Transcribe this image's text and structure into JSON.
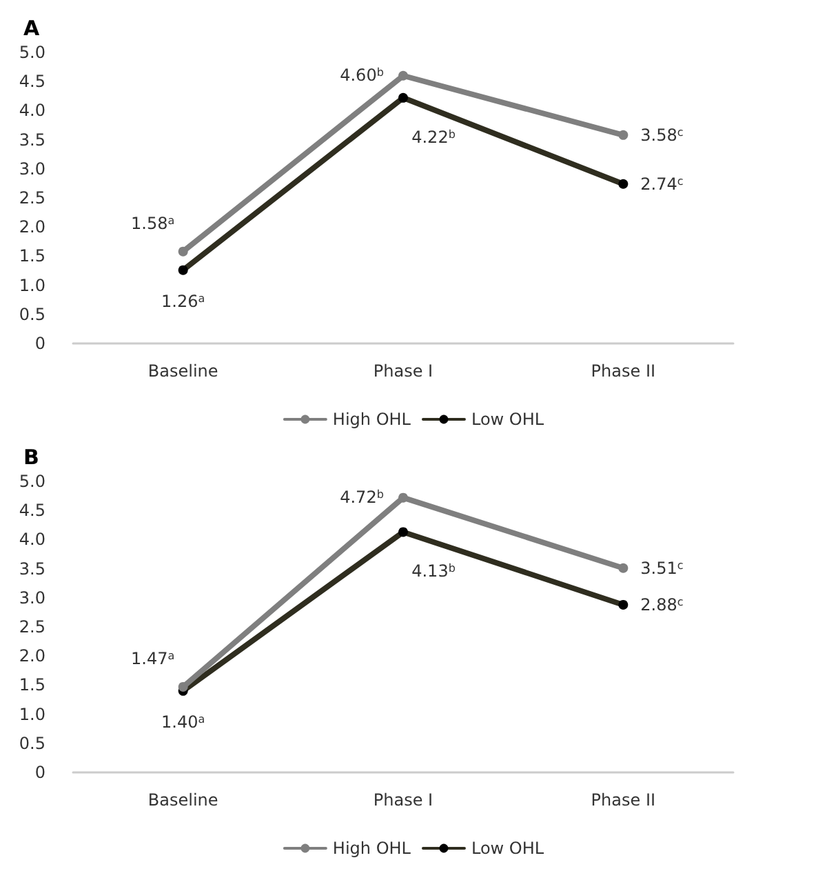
{
  "chart_data": [
    {
      "type": "line",
      "title": "A",
      "categories": [
        "Baseline",
        "Phase I",
        "Phase II"
      ],
      "series": [
        {
          "name": "High OHL",
          "color": "#7f7f7f",
          "values": [
            1.58,
            4.6,
            3.58
          ],
          "value_labels": [
            "1.58$^{a}$",
            "4.60$^{b}$",
            "3.58$^{c}$"
          ]
        },
        {
          "name": "Low OHL",
          "color": "#2f2d1f",
          "values": [
            1.26,
            4.22,
            2.74
          ],
          "value_labels": [
            "1.26$^{a}$",
            "4.22$^{b}$",
            "2.74$^{c}$"
          ]
        }
      ],
      "ylim": [
        0,
        5
      ],
      "yticks": [
        0,
        {
          "value": 0.5,
          "label": "0.5"
        },
        {
          "value": 1,
          "label": "1.0"
        },
        {
          "value": 1.5,
          "label": "1.5"
        },
        {
          "value": 2,
          "label": "2.0"
        },
        {
          "value": 2.5,
          "label": "2.5"
        },
        {
          "value": 3,
          "label": "3.0"
        },
        {
          "value": 3.5,
          "label": "3.5"
        },
        {
          "value": 4,
          "label": "4.0"
        },
        {
          "value": 4.5,
          "label": "4.5"
        },
        {
          "value": 5,
          "label": "5.0"
        }
      ],
      "grid": false,
      "legend": "bottom",
      "marker": "circle",
      "line_style": "solid"
    },
    {
      "type": "line",
      "title": "B",
      "categories": [
        "Baseline",
        "Phase I",
        "Phase II"
      ],
      "series": [
        {
          "name": "High OHL",
          "color": "#7f7f7f",
          "values": [
            1.47,
            4.72,
            3.51
          ],
          "value_labels": [
            "1.47$^{a}$",
            "4.72$^{b}$",
            "3.51$^{c}$"
          ]
        },
        {
          "name": "Low OHL",
          "color": "#2f2d1f",
          "values": [
            1.4,
            4.13,
            2.88
          ],
          "value_labels": [
            "1.40$^{a}$",
            "4.13$^{b}$",
            "2.88$^{c}$"
          ]
        }
      ],
      "ylim": [
        0,
        5
      ],
      "yticks": [
        0,
        {
          "value": 0.5,
          "label": "0.5"
        },
        {
          "value": 1,
          "label": "1.0"
        },
        {
          "value": 1.5,
          "label": "1.5"
        },
        {
          "value": 2,
          "label": "2.0"
        },
        {
          "value": 2.5,
          "label": "2.5"
        },
        {
          "value": 3,
          "label": "3.0"
        },
        {
          "value": 3.5,
          "label": "3.5"
        },
        {
          "value": 4,
          "label": "4.0"
        },
        {
          "value": 4.5,
          "label": "4.5"
        },
        {
          "value": 5,
          "label": "5.0"
        }
      ],
      "grid": false,
      "legend": "bottom",
      "marker": "circle",
      "line_style": "solid"
    }
  ]
}
